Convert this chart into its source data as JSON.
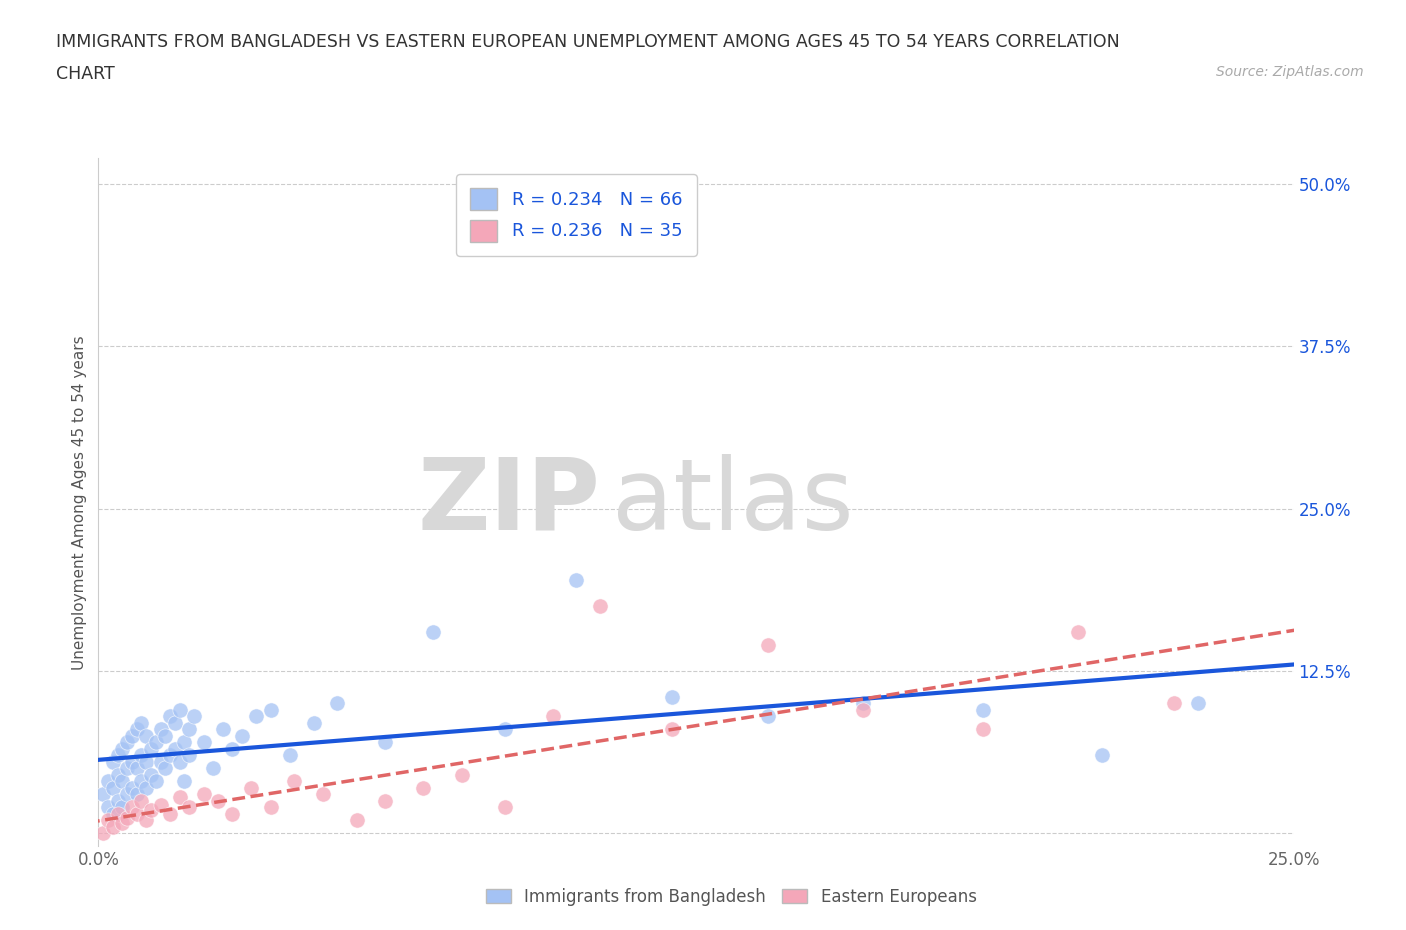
{
  "title_line1": "IMMIGRANTS FROM BANGLADESH VS EASTERN EUROPEAN UNEMPLOYMENT AMONG AGES 45 TO 54 YEARS CORRELATION",
  "title_line2": "CHART",
  "source": "Source: ZipAtlas.com",
  "ylabel": "Unemployment Among Ages 45 to 54 years",
  "xlim": [
    0.0,
    0.25
  ],
  "ylim": [
    -0.01,
    0.52
  ],
  "xticks": [
    0.0,
    0.05,
    0.1,
    0.15,
    0.2,
    0.25
  ],
  "xticklabels": [
    "0.0%",
    "",
    "",
    "",
    "",
    "25.0%"
  ],
  "yticks": [
    0.0,
    0.125,
    0.25,
    0.375,
    0.5
  ],
  "yticklabels_right": [
    "",
    "12.5%",
    "25.0%",
    "37.5%",
    "50.0%"
  ],
  "blue_color": "#a4c2f4",
  "pink_color": "#f4a7b9",
  "blue_line_color": "#1a56db",
  "pink_line_color": "#e06666",
  "R_blue": 0.234,
  "N_blue": 66,
  "R_pink": 0.236,
  "N_pink": 35,
  "legend_label_blue": "Immigrants from Bangladesh",
  "legend_label_pink": "Eastern Europeans",
  "watermark_zip": "ZIP",
  "watermark_atlas": "atlas",
  "blue_scatter_x": [
    0.001,
    0.002,
    0.002,
    0.003,
    0.003,
    0.003,
    0.004,
    0.004,
    0.004,
    0.005,
    0.005,
    0.005,
    0.006,
    0.006,
    0.006,
    0.007,
    0.007,
    0.007,
    0.008,
    0.008,
    0.008,
    0.009,
    0.009,
    0.009,
    0.01,
    0.01,
    0.01,
    0.011,
    0.011,
    0.012,
    0.012,
    0.013,
    0.013,
    0.014,
    0.014,
    0.015,
    0.015,
    0.016,
    0.016,
    0.017,
    0.017,
    0.018,
    0.018,
    0.019,
    0.019,
    0.02,
    0.022,
    0.024,
    0.026,
    0.028,
    0.03,
    0.033,
    0.036,
    0.04,
    0.045,
    0.05,
    0.06,
    0.07,
    0.085,
    0.1,
    0.12,
    0.14,
    0.16,
    0.185,
    0.21,
    0.23
  ],
  "blue_scatter_y": [
    0.03,
    0.02,
    0.04,
    0.015,
    0.035,
    0.055,
    0.025,
    0.045,
    0.06,
    0.02,
    0.04,
    0.065,
    0.03,
    0.05,
    0.07,
    0.035,
    0.055,
    0.075,
    0.03,
    0.05,
    0.08,
    0.04,
    0.06,
    0.085,
    0.035,
    0.055,
    0.075,
    0.045,
    0.065,
    0.04,
    0.07,
    0.055,
    0.08,
    0.05,
    0.075,
    0.06,
    0.09,
    0.065,
    0.085,
    0.055,
    0.095,
    0.07,
    0.04,
    0.06,
    0.08,
    0.09,
    0.07,
    0.05,
    0.08,
    0.065,
    0.075,
    0.09,
    0.095,
    0.06,
    0.085,
    0.1,
    0.07,
    0.155,
    0.08,
    0.195,
    0.105,
    0.09,
    0.1,
    0.095,
    0.06,
    0.1
  ],
  "pink_scatter_x": [
    0.001,
    0.002,
    0.003,
    0.004,
    0.005,
    0.006,
    0.007,
    0.008,
    0.009,
    0.01,
    0.011,
    0.013,
    0.015,
    0.017,
    0.019,
    0.022,
    0.025,
    0.028,
    0.032,
    0.036,
    0.041,
    0.047,
    0.054,
    0.06,
    0.068,
    0.076,
    0.085,
    0.095,
    0.105,
    0.12,
    0.14,
    0.16,
    0.185,
    0.205,
    0.225
  ],
  "pink_scatter_y": [
    0.0,
    0.01,
    0.005,
    0.015,
    0.008,
    0.012,
    0.02,
    0.015,
    0.025,
    0.01,
    0.018,
    0.022,
    0.015,
    0.028,
    0.02,
    0.03,
    0.025,
    0.015,
    0.035,
    0.02,
    0.04,
    0.03,
    0.01,
    0.025,
    0.035,
    0.045,
    0.02,
    0.09,
    0.175,
    0.08,
    0.145,
    0.095,
    0.08,
    0.155,
    0.1
  ]
}
